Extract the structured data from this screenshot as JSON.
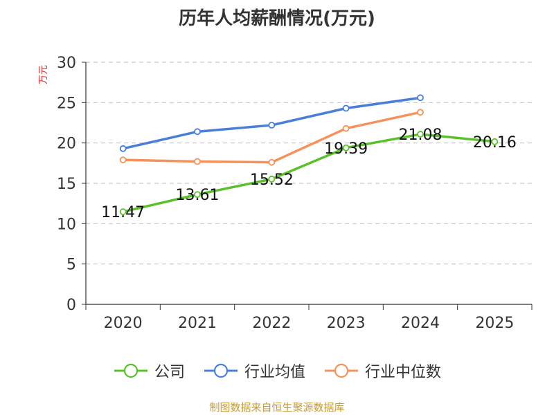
{
  "chart_data": {
    "type": "line",
    "title": "历年人均薪酬情况(万元)",
    "xlabel": "",
    "ylabel": "万元",
    "categories": [
      "2020",
      "2021",
      "2022",
      "2023",
      "2024",
      "2025"
    ],
    "ylim": [
      0,
      30
    ],
    "yticks": [
      0,
      5,
      10,
      15,
      20,
      25,
      30
    ],
    "grid": true,
    "legend_position": "bottom",
    "series": [
      {
        "name": "公司",
        "color": "#5bc12b",
        "values": [
          11.47,
          13.61,
          15.52,
          19.39,
          21.08,
          20.16
        ],
        "show_labels": true
      },
      {
        "name": "行业均值",
        "color": "#4a7fd9",
        "values": [
          19.3,
          21.4,
          22.2,
          24.3,
          25.6,
          null
        ],
        "show_labels": false
      },
      {
        "name": "行业中位数",
        "color": "#f5915a",
        "values": [
          17.9,
          17.7,
          17.6,
          21.8,
          23.8,
          null
        ],
        "show_labels": false
      }
    ]
  },
  "source": "制图数据来自恒生聚源数据库"
}
